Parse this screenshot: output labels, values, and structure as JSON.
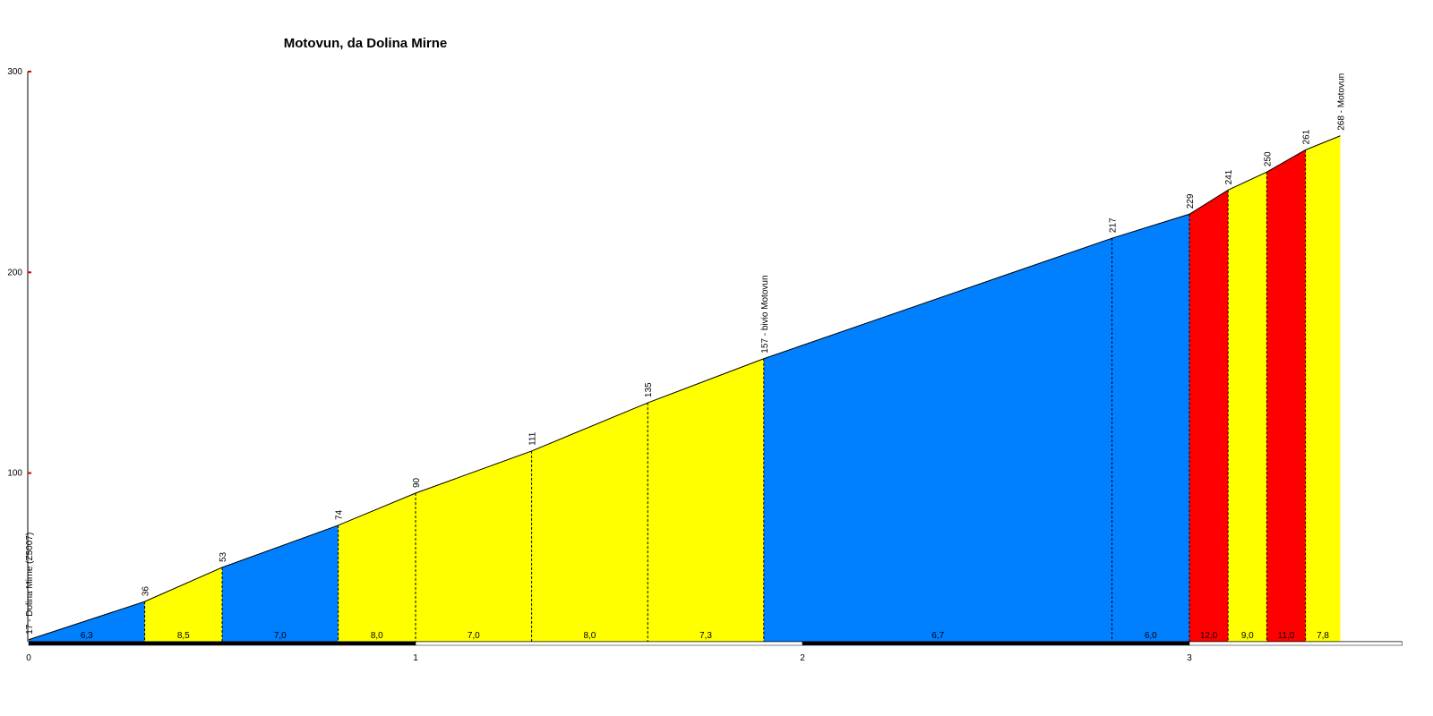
{
  "chart_data": {
    "type": "climb-profile",
    "title": "Motovun, da Dolina Mirne",
    "x": [
      0,
      0.3,
      0.5,
      0.8,
      1.0,
      1.3,
      1.6,
      1.9,
      2.8,
      3.0,
      3.1,
      3.2,
      3.3,
      3.39
    ],
    "values": [
      17,
      36,
      53,
      74,
      90,
      111,
      135,
      157,
      217,
      229,
      241,
      250,
      261,
      268
    ],
    "value_labels": [
      "17 - Dolina Mirne (Z5007)",
      "36",
      "53",
      "74",
      "90",
      "111",
      "135",
      "157 - bivio Motovun",
      "217",
      "229",
      "241",
      "250",
      "261",
      "268 - Motovun"
    ],
    "segment_labels": [
      "6,3",
      "8,5",
      "7,0",
      "8,0",
      "7,0",
      "8,0",
      "7,3",
      "6,7",
      "6,0",
      "12,0",
      "9,0",
      "11,0",
      "7,8"
    ],
    "segment_colors": [
      "#0080ff",
      "#ffff00",
      "#0080ff",
      "#ffff00",
      "#ffff00",
      "#ffff00",
      "#ffff00",
      "#0080ff",
      "#0080ff",
      "#ff0000",
      "#ffff00",
      "#ff0000",
      "#ffff00"
    ],
    "xlim": [
      0,
      3.55
    ],
    "xticks": [
      0,
      1,
      2,
      3
    ],
    "ylim": [
      16,
      300
    ],
    "yticks": [
      100,
      200,
      300
    ]
  }
}
